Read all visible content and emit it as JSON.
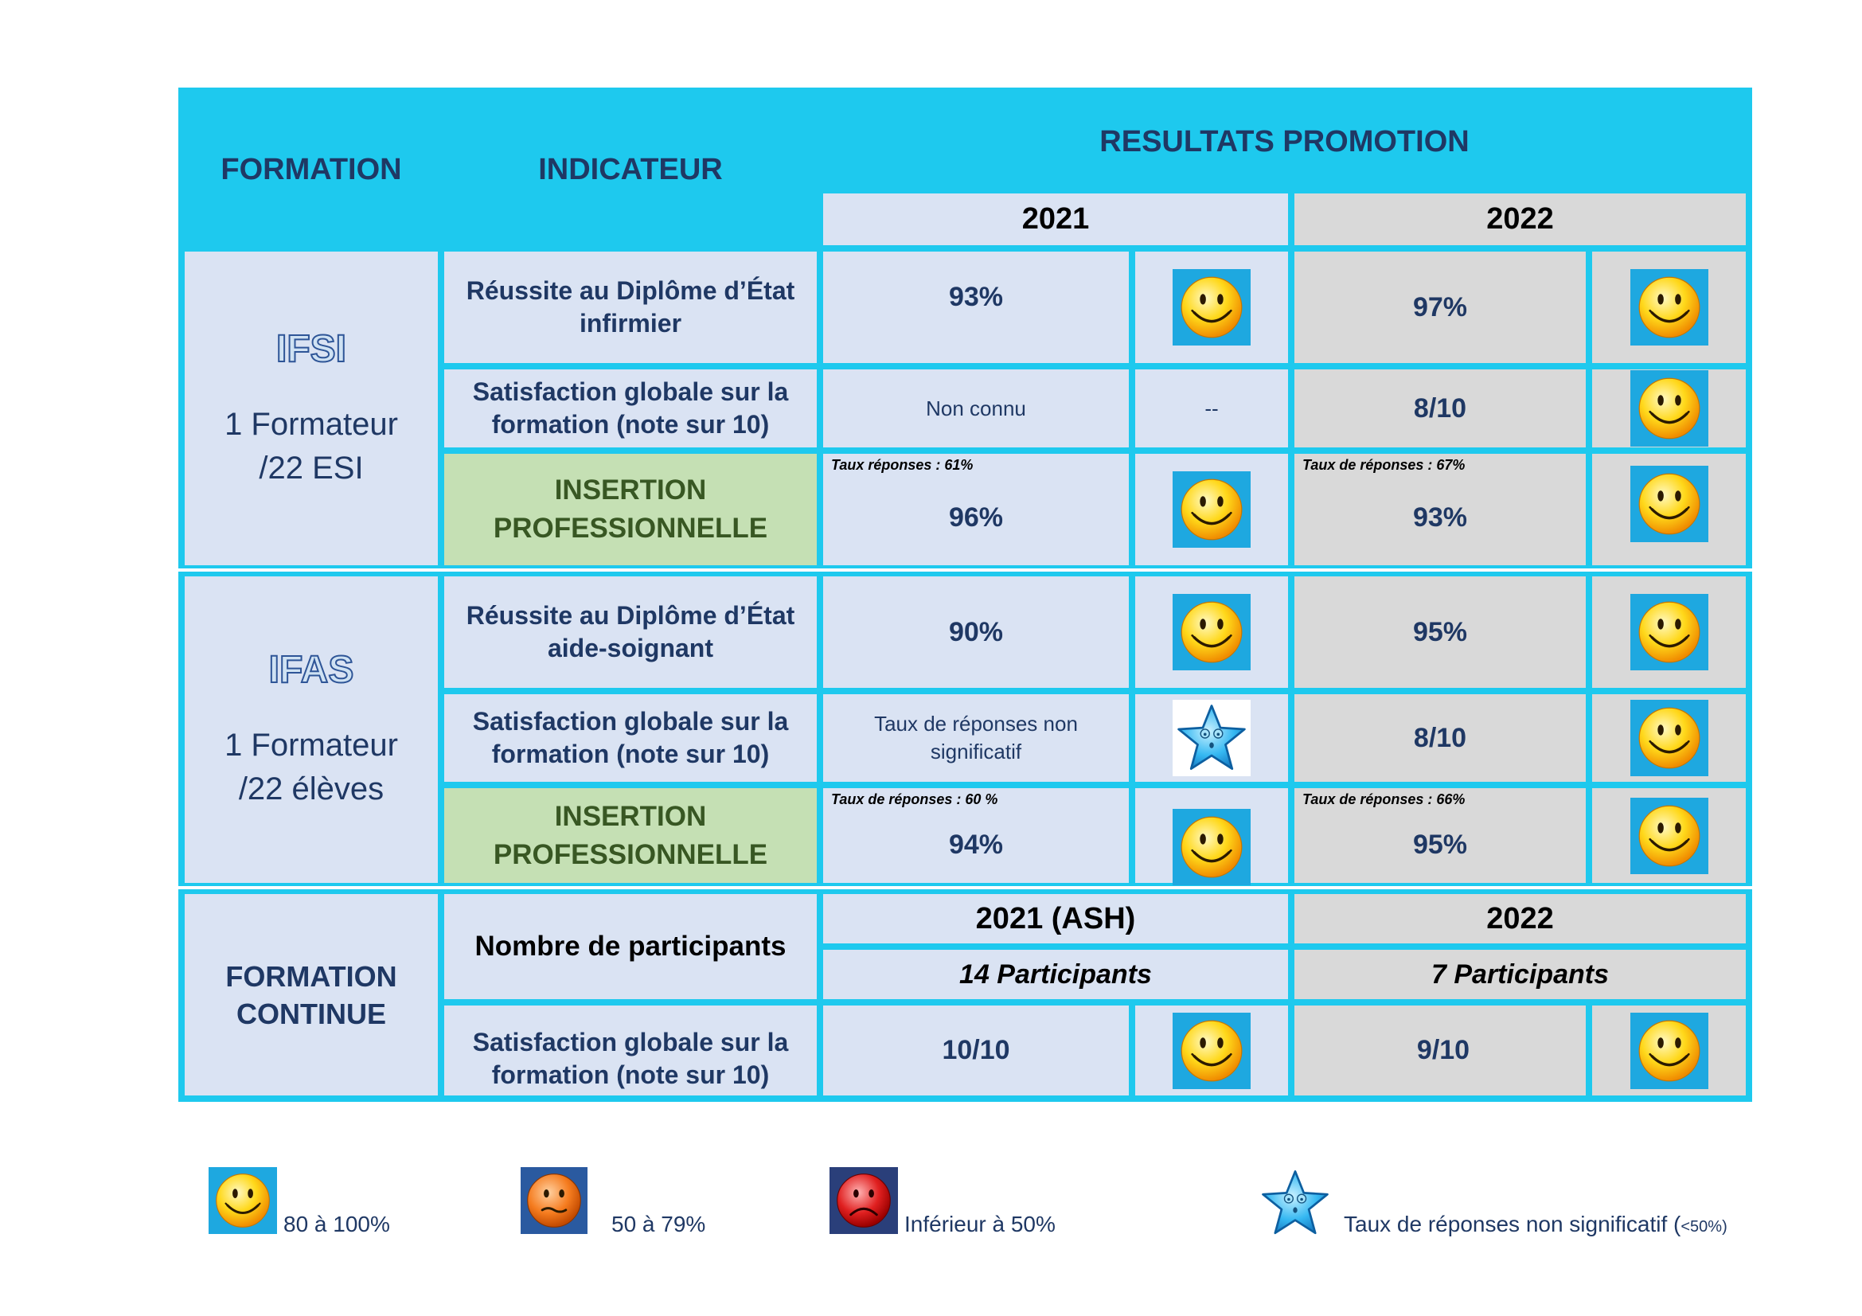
{
  "header": {
    "formation": "FORMATION",
    "indicateur": "INDICATEUR",
    "resultats": "RESULTATS PROMOTION",
    "year1": "2021",
    "year2": "2022"
  },
  "ifsi": {
    "name": "IFSI",
    "ratio_line1": "1 Formateur",
    "ratio_line2": "/22 ESI",
    "rows": [
      {
        "indicator_line1": "Réussite au Diplôme d’État",
        "indicator_line2": "infirmier",
        "v2021": "93%",
        "v2022": "97%"
      },
      {
        "indicator_line1": "Satisfaction globale sur la",
        "indicator_line2": "formation (note sur 10)",
        "v2021": "Non connu",
        "icon2021": "--",
        "v2022": "8/10"
      },
      {
        "indicator_line1": "INSERTION",
        "indicator_line2": "PROFESSIONNELLE",
        "rate2021": "Taux réponses : 61%",
        "v2021": "96%",
        "rate2022": "Taux de réponses : 67%",
        "v2022": "93%"
      }
    ]
  },
  "ifas": {
    "name": "IFAS",
    "ratio_line1": "1 Formateur",
    "ratio_line2": "/22 élèves",
    "rows": [
      {
        "indicator_line1": "Réussite au Diplôme d’État",
        "indicator_line2": "aide-soignant",
        "v2021": "90%",
        "v2022": "95%"
      },
      {
        "indicator_line1": "Satisfaction globale sur la",
        "indicator_line2": "formation (note sur 10)",
        "v2021_line1": "Taux de réponses non",
        "v2021_line2": "significatif",
        "v2022": "8/10"
      },
      {
        "indicator_line1": "INSERTION",
        "indicator_line2": "PROFESSIONNELLE",
        "rate2021": "Taux de réponses : 60 %",
        "v2021": "94%",
        "rate2022": "Taux de réponses : 66%",
        "v2022": "95%"
      }
    ]
  },
  "continue": {
    "name_line1": "FORMATION",
    "name_line2": "CONTINUE",
    "participants_label": "Nombre de participants",
    "year1": "2021 (ASH)",
    "year2": "2022",
    "participants2021": "14 Participants",
    "participants2022": "7 Participants",
    "satisfaction_line1": "Satisfaction globale sur la",
    "satisfaction_line2": "formation (note sur 10)",
    "v2021": "10/10",
    "v2022": "9/10"
  },
  "legend": [
    {
      "icon": "smiley-happy-icon",
      "label": "80 à 100%"
    },
    {
      "icon": "smiley-neutral-icon",
      "label": "50 à 79%"
    },
    {
      "icon": "smiley-sad-icon",
      "label": "Inférieur à 50%"
    },
    {
      "icon": "star-icon",
      "label": "Taux de réponses non significatif (",
      "label_small": "<50%)"
    }
  ],
  "colors": {
    "frame": "#1ec9ee",
    "blue_cell": "#dae3f3",
    "grey_cell": "#d9d9d9",
    "green_cell": "#c5e0b4",
    "text": "#1f3864"
  }
}
